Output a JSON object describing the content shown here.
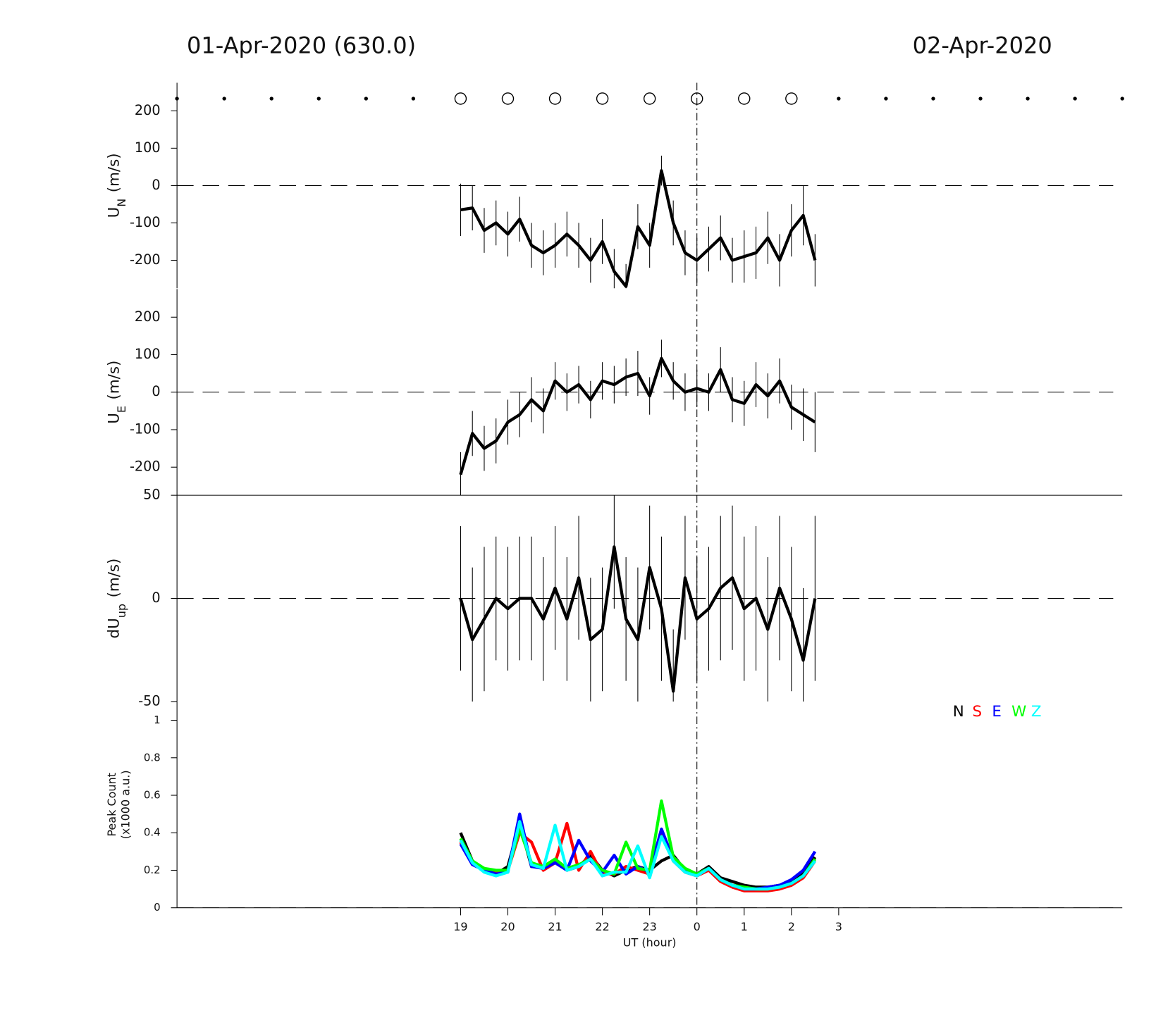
{
  "title_left": "01-Apr-2020 (630.0)",
  "title_right": "02-Apr-2020",
  "top_markers": {
    "x": [
      13,
      14,
      15,
      16,
      17,
      18,
      19,
      20,
      21,
      22,
      23,
      24,
      25,
      26,
      27,
      28,
      29,
      30,
      31,
      32,
      33
    ],
    "symbol": [
      "dot",
      "dot",
      "dot",
      "dot",
      "dot",
      "dot",
      "circle",
      "circle",
      "circle",
      "circle",
      "circle",
      "circle",
      "circle",
      "circle",
      "dot",
      "dot",
      "dot",
      "dot",
      "dot",
      "dot",
      "dot"
    ]
  },
  "chart_data": [
    {
      "type": "line",
      "ylabel": {
        "main": "U",
        "sub": "N",
        "unit": "(m/s)"
      },
      "xlim": [
        13,
        33
      ],
      "ylim": [
        -275,
        275
      ],
      "yticks": [
        -200,
        -100,
        0,
        100,
        200
      ],
      "hline": 0,
      "vline": 24,
      "color": "#000000",
      "x": [
        19,
        19.25,
        19.5,
        19.75,
        20,
        20.25,
        20.5,
        20.75,
        21,
        21.25,
        21.5,
        21.75,
        22,
        22.25,
        22.5,
        22.75,
        23,
        23.25,
        23.5,
        23.75,
        24,
        24.25,
        24.5,
        24.75,
        25,
        25.25,
        25.5,
        25.75,
        26,
        26.25,
        26.5
      ],
      "values": [
        -65,
        -60,
        -120,
        -100,
        -130,
        -90,
        -160,
        -180,
        -160,
        -130,
        -160,
        -200,
        -150,
        -230,
        -270,
        -110,
        -160,
        40,
        -100,
        -180,
        -200,
        -170,
        -140,
        -200,
        -190,
        -180,
        -140,
        -200,
        -120,
        -80,
        -200
      ],
      "errors": [
        70,
        60,
        60,
        60,
        60,
        60,
        60,
        60,
        60,
        60,
        60,
        60,
        60,
        60,
        60,
        60,
        60,
        40,
        60,
        60,
        60,
        60,
        60,
        60,
        70,
        70,
        70,
        70,
        70,
        80,
        70
      ]
    },
    {
      "type": "line",
      "ylabel": {
        "main": "U",
        "sub": "E",
        "unit": "(m/s)"
      },
      "xlim": [
        13,
        33
      ],
      "ylim": [
        -275,
        275
      ],
      "yticks": [
        -200,
        -100,
        0,
        100,
        200
      ],
      "hline": 0,
      "vline": 24,
      "color": "#000000",
      "x": [
        19,
        19.25,
        19.5,
        19.75,
        20,
        20.25,
        20.5,
        20.75,
        21,
        21.25,
        21.5,
        21.75,
        22,
        22.25,
        22.5,
        22.75,
        23,
        23.25,
        23.5,
        23.75,
        24,
        24.25,
        24.5,
        24.75,
        25,
        25.25,
        25.5,
        25.75,
        26,
        26.25,
        26.5
      ],
      "values": [
        -220,
        -110,
        -150,
        -130,
        -80,
        -60,
        -20,
        -50,
        30,
        0,
        20,
        -20,
        30,
        20,
        40,
        50,
        -10,
        90,
        30,
        0,
        10,
        0,
        60,
        -20,
        -30,
        20,
        -10,
        30,
        -40,
        -60,
        -80
      ],
      "errors": [
        60,
        60,
        60,
        60,
        60,
        60,
        60,
        60,
        50,
        50,
        50,
        50,
        50,
        50,
        50,
        60,
        50,
        50,
        50,
        50,
        50,
        50,
        60,
        60,
        60,
        60,
        60,
        60,
        60,
        70,
        80
      ]
    },
    {
      "type": "line",
      "ylabel": {
        "main": "dU",
        "sub": "up",
        "unit": "(m/s)"
      },
      "xlim": [
        13,
        33
      ],
      "ylim": [
        -50,
        50
      ],
      "yticks": [
        -50,
        0,
        50
      ],
      "hline": 0,
      "vline": 24,
      "color": "#000000",
      "x": [
        19,
        19.25,
        19.5,
        19.75,
        20,
        20.25,
        20.5,
        20.75,
        21,
        21.25,
        21.5,
        21.75,
        22,
        22.25,
        22.5,
        22.75,
        23,
        23.25,
        23.5,
        23.75,
        24,
        24.25,
        24.5,
        24.75,
        25,
        25.25,
        25.5,
        25.75,
        26,
        26.25,
        26.5
      ],
      "values": [
        0,
        -20,
        -10,
        0,
        -5,
        0,
        0,
        -10,
        5,
        -10,
        10,
        -20,
        -15,
        25,
        -10,
        -20,
        15,
        -5,
        -45,
        10,
        -10,
        -5,
        5,
        10,
        -5,
        0,
        -15,
        5,
        -10,
        -30,
        0
      ],
      "errors": [
        35,
        35,
        35,
        30,
        30,
        30,
        30,
        30,
        30,
        30,
        30,
        30,
        30,
        30,
        30,
        35,
        30,
        35,
        30,
        30,
        30,
        30,
        35,
        35,
        35,
        35,
        35,
        35,
        35,
        35,
        40
      ]
    },
    {
      "type": "multiline",
      "ylabel": {
        "lines": [
          "Peak Count",
          "(x1000 a.u.)"
        ]
      },
      "xlabel": "UT (hour)",
      "xlim": [
        13,
        33
      ],
      "ylim": [
        0,
        1.1
      ],
      "yticks": [
        0,
        0.2,
        0.4,
        0.6,
        0.8,
        1
      ],
      "hline": 0,
      "vline": 24,
      "legend": "upper right",
      "xticks": [
        19,
        20,
        21,
        22,
        23,
        {
          "value": 24,
          "label": "0"
        },
        {
          "value": 25,
          "label": "1"
        },
        {
          "value": 26,
          "label": "2"
        },
        {
          "value": 27,
          "label": "3"
        }
      ],
      "x": [
        19,
        19.25,
        19.5,
        19.75,
        20,
        20.25,
        20.5,
        20.75,
        21,
        21.25,
        21.5,
        21.75,
        22,
        22.25,
        22.5,
        22.75,
        23,
        23.25,
        23.5,
        23.75,
        24,
        24.25,
        24.5,
        24.75,
        25,
        25.25,
        25.5,
        25.75,
        26,
        26.25,
        26.5
      ],
      "series": [
        {
          "name": "N",
          "color": "#000000",
          "values": [
            0.4,
            0.25,
            0.2,
            0.18,
            0.22,
            0.45,
            0.22,
            0.22,
            0.25,
            0.2,
            0.22,
            0.28,
            0.2,
            0.17,
            0.2,
            0.22,
            0.2,
            0.25,
            0.28,
            0.2,
            0.18,
            0.22,
            0.16,
            0.14,
            0.12,
            0.11,
            0.11,
            0.12,
            0.14,
            0.18,
            0.27
          ]
        },
        {
          "name": "S",
          "color": "#ff0000",
          "values": [
            0.35,
            0.24,
            0.21,
            0.19,
            0.2,
            0.4,
            0.35,
            0.2,
            0.24,
            0.45,
            0.2,
            0.3,
            0.18,
            0.18,
            0.22,
            0.2,
            0.18,
            0.4,
            0.25,
            0.19,
            0.17,
            0.2,
            0.14,
            0.11,
            0.09,
            0.09,
            0.09,
            0.1,
            0.12,
            0.16,
            0.25
          ]
        },
        {
          "name": "E",
          "color": "#0000ff",
          "values": [
            0.34,
            0.23,
            0.2,
            0.18,
            0.19,
            0.5,
            0.22,
            0.21,
            0.24,
            0.2,
            0.36,
            0.25,
            0.19,
            0.28,
            0.18,
            0.22,
            0.19,
            0.42,
            0.26,
            0.2,
            0.18,
            0.21,
            0.15,
            0.12,
            0.1,
            0.1,
            0.11,
            0.12,
            0.15,
            0.2,
            0.3
          ]
        },
        {
          "name": "W",
          "color": "#00ff00",
          "values": [
            0.37,
            0.25,
            0.21,
            0.2,
            0.2,
            0.42,
            0.24,
            0.22,
            0.26,
            0.21,
            0.23,
            0.26,
            0.2,
            0.18,
            0.35,
            0.21,
            0.2,
            0.57,
            0.27,
            0.21,
            0.18,
            0.21,
            0.15,
            0.12,
            0.11,
            0.1,
            0.1,
            0.11,
            0.13,
            0.17,
            0.26
          ]
        },
        {
          "name": "Z",
          "color": "#00ffff",
          "values": [
            0.36,
            0.24,
            0.19,
            0.17,
            0.19,
            0.46,
            0.23,
            0.21,
            0.44,
            0.2,
            0.22,
            0.26,
            0.17,
            0.19,
            0.19,
            0.33,
            0.16,
            0.38,
            0.25,
            0.19,
            0.17,
            0.21,
            0.15,
            0.12,
            0.1,
            0.1,
            0.1,
            0.11,
            0.13,
            0.17,
            0.25
          ]
        }
      ]
    }
  ]
}
